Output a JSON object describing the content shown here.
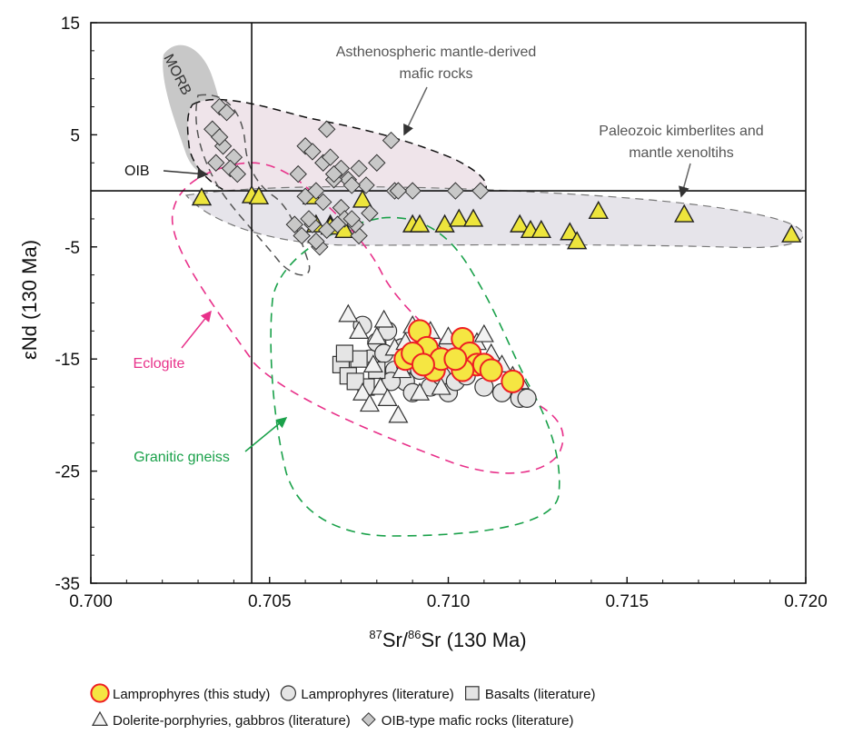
{
  "chart_data": {
    "type": "scatter",
    "xlabel_sup1": "87",
    "xlabel_mid": "Sr/",
    "xlabel_sup2": "86",
    "xlabel_tail": "Sr (130 Ma)",
    "ylabel": "εNd (130 Ma)",
    "xlim": [
      0.7,
      0.72
    ],
    "ylim": [
      -35,
      15
    ],
    "x_ticks": [
      0.7,
      0.705,
      0.71,
      0.715,
      0.72
    ],
    "x_tick_labels": [
      "0.700",
      "0.705",
      "0.710",
      "0.715",
      "0.720"
    ],
    "y_ticks": [
      15,
      5,
      -5,
      -15,
      -25,
      -35
    ],
    "y_tick_labels": [
      "15",
      "5",
      "-5",
      "-15",
      "-25",
      "-35"
    ],
    "reference_lines": {
      "x": 0.7045,
      "y": 0.0
    },
    "annotations": {
      "morb": "MORB",
      "oib": "OIB",
      "asthenosphere_line1": "Asthenospheric mantle-derived",
      "asthenosphere_line2": "mafic rocks",
      "kimberlite_line1": "Paleozoic kimberlites and",
      "kimberlite_line2": "mantle xenoltihs",
      "eclogite": "Eclogite",
      "granitic": "Granitic gneiss"
    },
    "colors": {
      "lamprophyre_this": "#f5e642",
      "lamprophyre_this_edge": "#ee1f23",
      "literature_fill": "#e5e5e5",
      "oib_diamond": "#c8c8c8",
      "kimberlite_fill": "#ede53c",
      "eclogite": "#e8318a",
      "granitic": "#1aa14a",
      "morb_field": "#c8c8c8",
      "asth_field": "#efe4ea",
      "kimb_field": "#e6e4ea",
      "annotation_text": "#555555"
    },
    "legend": [
      {
        "marker": "circle-highlight",
        "label": "Lamprophyres (this study)"
      },
      {
        "marker": "circle",
        "label": "Lamprophyres (literature)"
      },
      {
        "marker": "square",
        "label": "Basalts (literature)"
      },
      {
        "marker": "triangle-open",
        "label": "Dolerite-porphyries, gabbros (literature)"
      },
      {
        "marker": "diamond",
        "label": "OIB-type mafic rocks (literature)"
      }
    ],
    "series": [
      {
        "name": "Lamprophyres (this study)",
        "marker": "circle-highlight",
        "x": [
          0.7092,
          0.7094,
          0.7088,
          0.7096,
          0.7098,
          0.7104,
          0.7106,
          0.7108,
          0.7104,
          0.7102,
          0.711,
          0.7112,
          0.7118,
          0.709,
          0.7093
        ],
        "y": [
          -12.5,
          -14.0,
          -15.0,
          -16.0,
          -15.0,
          -13.2,
          -14.5,
          -15.5,
          -16.0,
          -15.0,
          -15.5,
          -16.0,
          -17.0,
          -14.5,
          -15.5
        ]
      },
      {
        "name": "Lamprophyres (literature)",
        "marker": "circle",
        "x": [
          0.7076,
          0.708,
          0.7078,
          0.7082,
          0.7085,
          0.7088,
          0.709,
          0.7095,
          0.7098,
          0.71,
          0.7088,
          0.7084,
          0.7093,
          0.7102,
          0.7105,
          0.711,
          0.7115,
          0.712,
          0.7122,
          0.71,
          0.7096,
          0.7092,
          0.7083,
          0.7087
        ],
        "y": [
          -12.0,
          -13.5,
          -15.0,
          -14.5,
          -16.0,
          -17.0,
          -18.0,
          -17.5,
          -16.5,
          -18.0,
          -15.5,
          -17.0,
          -13.0,
          -17.0,
          -16.5,
          -17.5,
          -18.0,
          -18.5,
          -18.5,
          -13.8,
          -14.5,
          -16.0,
          -12.5,
          -14.0
        ]
      },
      {
        "name": "Basalts (literature)",
        "marker": "square",
        "x": [
          0.707,
          0.7072,
          0.7075,
          0.7077,
          0.708,
          0.7071,
          0.7074
        ],
        "y": [
          -15.5,
          -16.5,
          -15.0,
          -17.5,
          -16.0,
          -14.5,
          -17.0
        ]
      },
      {
        "name": "Dolerite-porphyries, gabbros (literature)",
        "marker": "triangle-open",
        "x": [
          0.7072,
          0.7075,
          0.7076,
          0.7078,
          0.708,
          0.7081,
          0.7083,
          0.7085,
          0.7086,
          0.7088,
          0.709,
          0.7092,
          0.7095,
          0.7098,
          0.71,
          0.7105,
          0.7108,
          0.7112,
          0.7115,
          0.7118,
          0.712,
          0.7079,
          0.7082,
          0.7087,
          0.7094,
          0.711
        ],
        "y": [
          -11.0,
          -12.5,
          -18.0,
          -19.0,
          -13.0,
          -17.5,
          -18.5,
          -14.0,
          -20.0,
          -13.5,
          -12.0,
          -18.0,
          -12.5,
          -17.5,
          -13.0,
          -14.0,
          -13.5,
          -14.5,
          -15.5,
          -16.5,
          -17.0,
          -15.5,
          -11.5,
          -16.0,
          -15.0,
          -12.8
        ]
      },
      {
        "name": "OIB-type mafic rocks (literature)",
        "marker": "diamond",
        "x": [
          0.7036,
          0.7038,
          0.7034,
          0.7037,
          0.704,
          0.7035,
          0.7039,
          0.7041,
          0.7036,
          0.706,
          0.7062,
          0.7065,
          0.7067,
          0.707,
          0.7072,
          0.7075,
          0.7077,
          0.708,
          0.7058,
          0.7063,
          0.7068,
          0.7073,
          0.706,
          0.7065,
          0.707,
          0.7062,
          0.7066,
          0.7071,
          0.7075,
          0.7084,
          0.7085,
          0.709,
          0.7102,
          0.7109,
          0.7059,
          0.7064,
          0.7061,
          0.7069,
          0.7074,
          0.7078,
          0.7066,
          0.7068,
          0.7057,
          0.7063,
          0.7073,
          0.7086
        ],
        "y": [
          7.5,
          7.0,
          5.5,
          4.0,
          3.0,
          2.5,
          2.0,
          1.5,
          4.8,
          4.0,
          3.5,
          2.5,
          3.0,
          2.0,
          1.0,
          2.0,
          0.5,
          2.5,
          1.5,
          0.0,
          1.0,
          0.5,
          -0.5,
          -1.0,
          -1.5,
          -3.0,
          -3.5,
          -2.5,
          -4.0,
          4.5,
          0.0,
          0.0,
          0.0,
          0.0,
          -4.0,
          -5.0,
          -2.5,
          -3.0,
          -3.0,
          -2.0,
          5.5,
          1.5,
          -3.0,
          -4.5,
          -2.5,
          0.0
        ]
      },
      {
        "name": "Paleozoic kimberlites and mantle xenoltihs",
        "marker": "triangle-yellow",
        "x": [
          0.7031,
          0.7045,
          0.7047,
          0.7062,
          0.7067,
          0.7076,
          0.709,
          0.7092,
          0.7099,
          0.7103,
          0.7107,
          0.712,
          0.7123,
          0.7126,
          0.7134,
          0.7136,
          0.7142,
          0.7166,
          0.7196,
          0.7063,
          0.7067,
          0.7071
        ],
        "y": [
          -0.6,
          -0.4,
          -0.5,
          -0.5,
          -3.0,
          -0.8,
          -3.0,
          -3.0,
          -3.0,
          -2.5,
          -2.5,
          -3.0,
          -3.5,
          -3.5,
          -3.7,
          -4.5,
          -1.8,
          -2.1,
          -3.9,
          -3.0,
          -3.2,
          -3.5
        ]
      }
    ]
  }
}
